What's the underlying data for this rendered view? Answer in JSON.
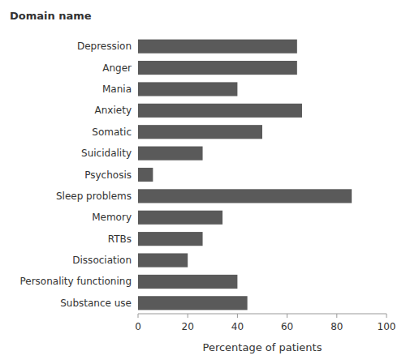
{
  "chart_data": {
    "type": "bar",
    "orientation": "horizontal",
    "ylabel": "Domain name",
    "xlabel": "Percentage of patients",
    "categories": [
      "Substance use",
      "Personality functioning",
      "Dissociation",
      "RTBs",
      "Memory",
      "Sleep problems",
      "Psychosis",
      "Suicidality",
      "Somatic",
      "Anxiety",
      "Mania",
      "Anger",
      "Depression"
    ],
    "values": [
      44,
      40,
      20,
      26,
      34,
      86,
      6,
      26,
      50,
      66,
      40,
      64,
      64
    ],
    "color": "#5a5a5a",
    "xlim": [
      0,
      100
    ],
    "xticks": [
      0,
      20,
      40,
      60,
      80,
      100
    ],
    "grid": false
  }
}
